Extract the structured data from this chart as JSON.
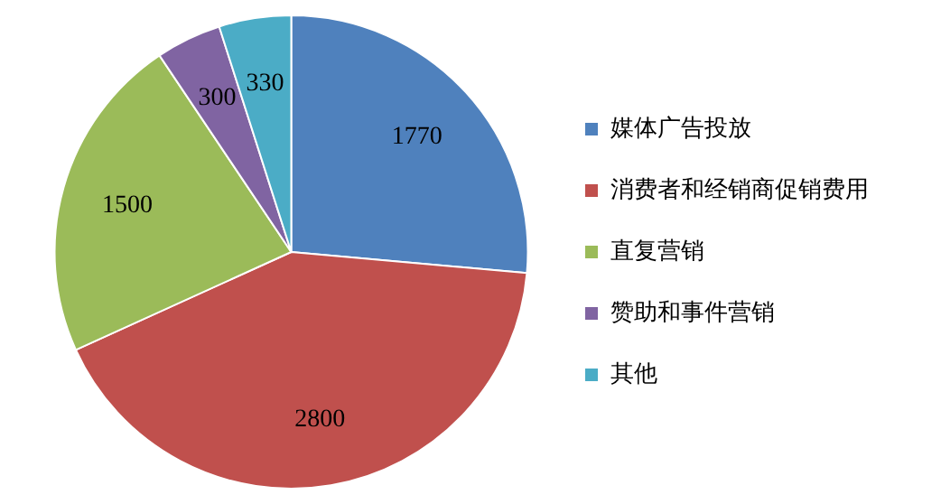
{
  "chart_data": {
    "type": "pie",
    "categories": [
      "媒体广告投放",
      "消费者和经销商促销费用",
      "直复营销",
      "赞助和事件营销",
      "其他"
    ],
    "values": [
      1770,
      2800,
      1500,
      300,
      330
    ],
    "colors": [
      "#4f81bd",
      "#c0504d",
      "#9bbb59",
      "#8064a2",
      "#4bacc6"
    ],
    "data_labels": true,
    "legend": "right"
  }
}
